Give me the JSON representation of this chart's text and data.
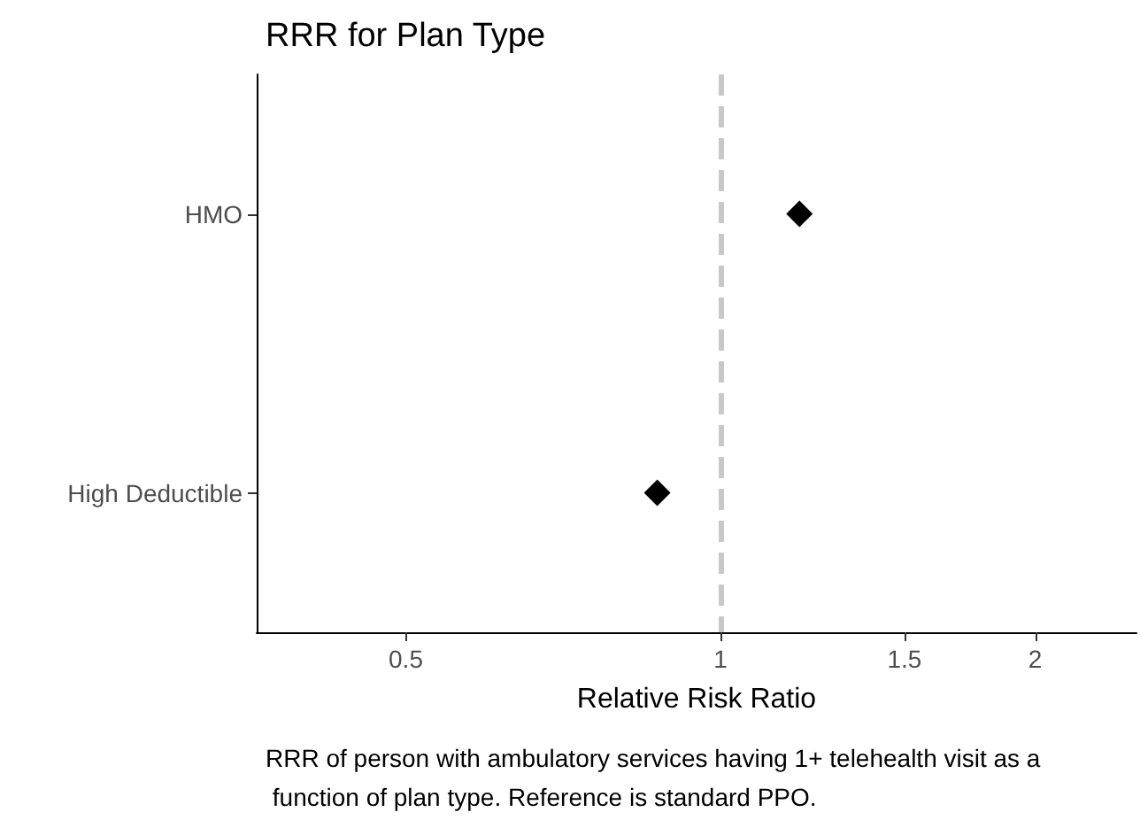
{
  "chart_data": {
    "type": "scatter",
    "title": "RRR for Plan Type",
    "xlabel": "Relative Risk Ratio",
    "categories": [
      "HMO",
      "High Deductible"
    ],
    "orientation": "horizontal",
    "series": [
      {
        "color": "#000000",
        "values": [
          1.19,
          0.87
        ]
      }
    ],
    "log": "x",
    "xlim": [
      0.36,
      2.5
    ],
    "xticks": [
      0.5,
      1,
      1.5,
      2
    ],
    "ref_lines": [
      {
        "axis": "x",
        "value": 1,
        "color": "#c8c8c8",
        "line_style": "dashed"
      }
    ],
    "marker": "diamond",
    "grid": false,
    "annotations": [
      "RRR of person with ambulatory services having 1+ telehealth visit as a function of plan type. Reference is standard PPO."
    ]
  }
}
